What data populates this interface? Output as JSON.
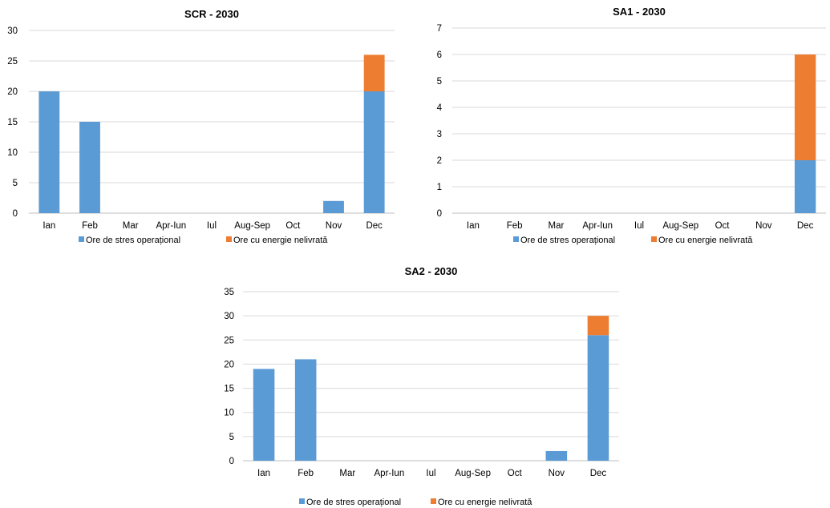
{
  "colors": {
    "stres": "#5B9BD5",
    "nelivrata": "#ED7D31",
    "grid": "#D9D9D9",
    "axis": "#BFBFBF"
  },
  "chart_data": [
    {
      "type": "bar",
      "stacked": true,
      "title": "SCR  - 2030",
      "categories": [
        "Ian",
        "Feb",
        "Mar",
        "Apr-Iun",
        "Iul",
        "Aug-Sep",
        "Oct",
        "Nov",
        "Dec"
      ],
      "series": [
        {
          "name": "Ore de stres operațional",
          "values": [
            20,
            15,
            0,
            0,
            0,
            0,
            0,
            2,
            20
          ]
        },
        {
          "name": "Ore cu energie nelivrată",
          "values": [
            0,
            0,
            0,
            0,
            0,
            0,
            0,
            0,
            6
          ]
        }
      ],
      "ylim": [
        0,
        30
      ],
      "yticks": [
        0,
        5,
        10,
        15,
        20,
        25,
        30
      ],
      "grid": true,
      "legend": "bottom"
    },
    {
      "type": "bar",
      "stacked": true,
      "title": "SA1  - 2030",
      "categories": [
        "Ian",
        "Feb",
        "Mar",
        "Apr-Iun",
        "Iul",
        "Aug-Sep",
        "Oct",
        "Nov",
        "Dec"
      ],
      "series": [
        {
          "name": "Ore de stres operațional",
          "values": [
            0,
            0,
            0,
            0,
            0,
            0,
            0,
            0,
            2
          ]
        },
        {
          "name": "Ore cu energie nelivrată",
          "values": [
            0,
            0,
            0,
            0,
            0,
            0,
            0,
            0,
            4
          ]
        }
      ],
      "ylim": [
        0,
        7
      ],
      "yticks": [
        0,
        1,
        2,
        3,
        4,
        5,
        6,
        7
      ],
      "grid": true,
      "legend": "bottom"
    },
    {
      "type": "bar",
      "stacked": true,
      "title": "SA2  - 2030",
      "categories": [
        "Ian",
        "Feb",
        "Mar",
        "Apr-Iun",
        "Iul",
        "Aug-Sep",
        "Oct",
        "Nov",
        "Dec"
      ],
      "series": [
        {
          "name": "Ore de stres operațional",
          "values": [
            19,
            21,
            0,
            0,
            0,
            0,
            0,
            2,
            26
          ]
        },
        {
          "name": "Ore cu energie nelivrată",
          "values": [
            0,
            0,
            0,
            0,
            0,
            0,
            0,
            0,
            4
          ]
        }
      ],
      "ylim": [
        0,
        35
      ],
      "yticks": [
        0,
        5,
        10,
        15,
        20,
        25,
        30,
        35
      ],
      "grid": true,
      "legend": "bottom"
    }
  ]
}
